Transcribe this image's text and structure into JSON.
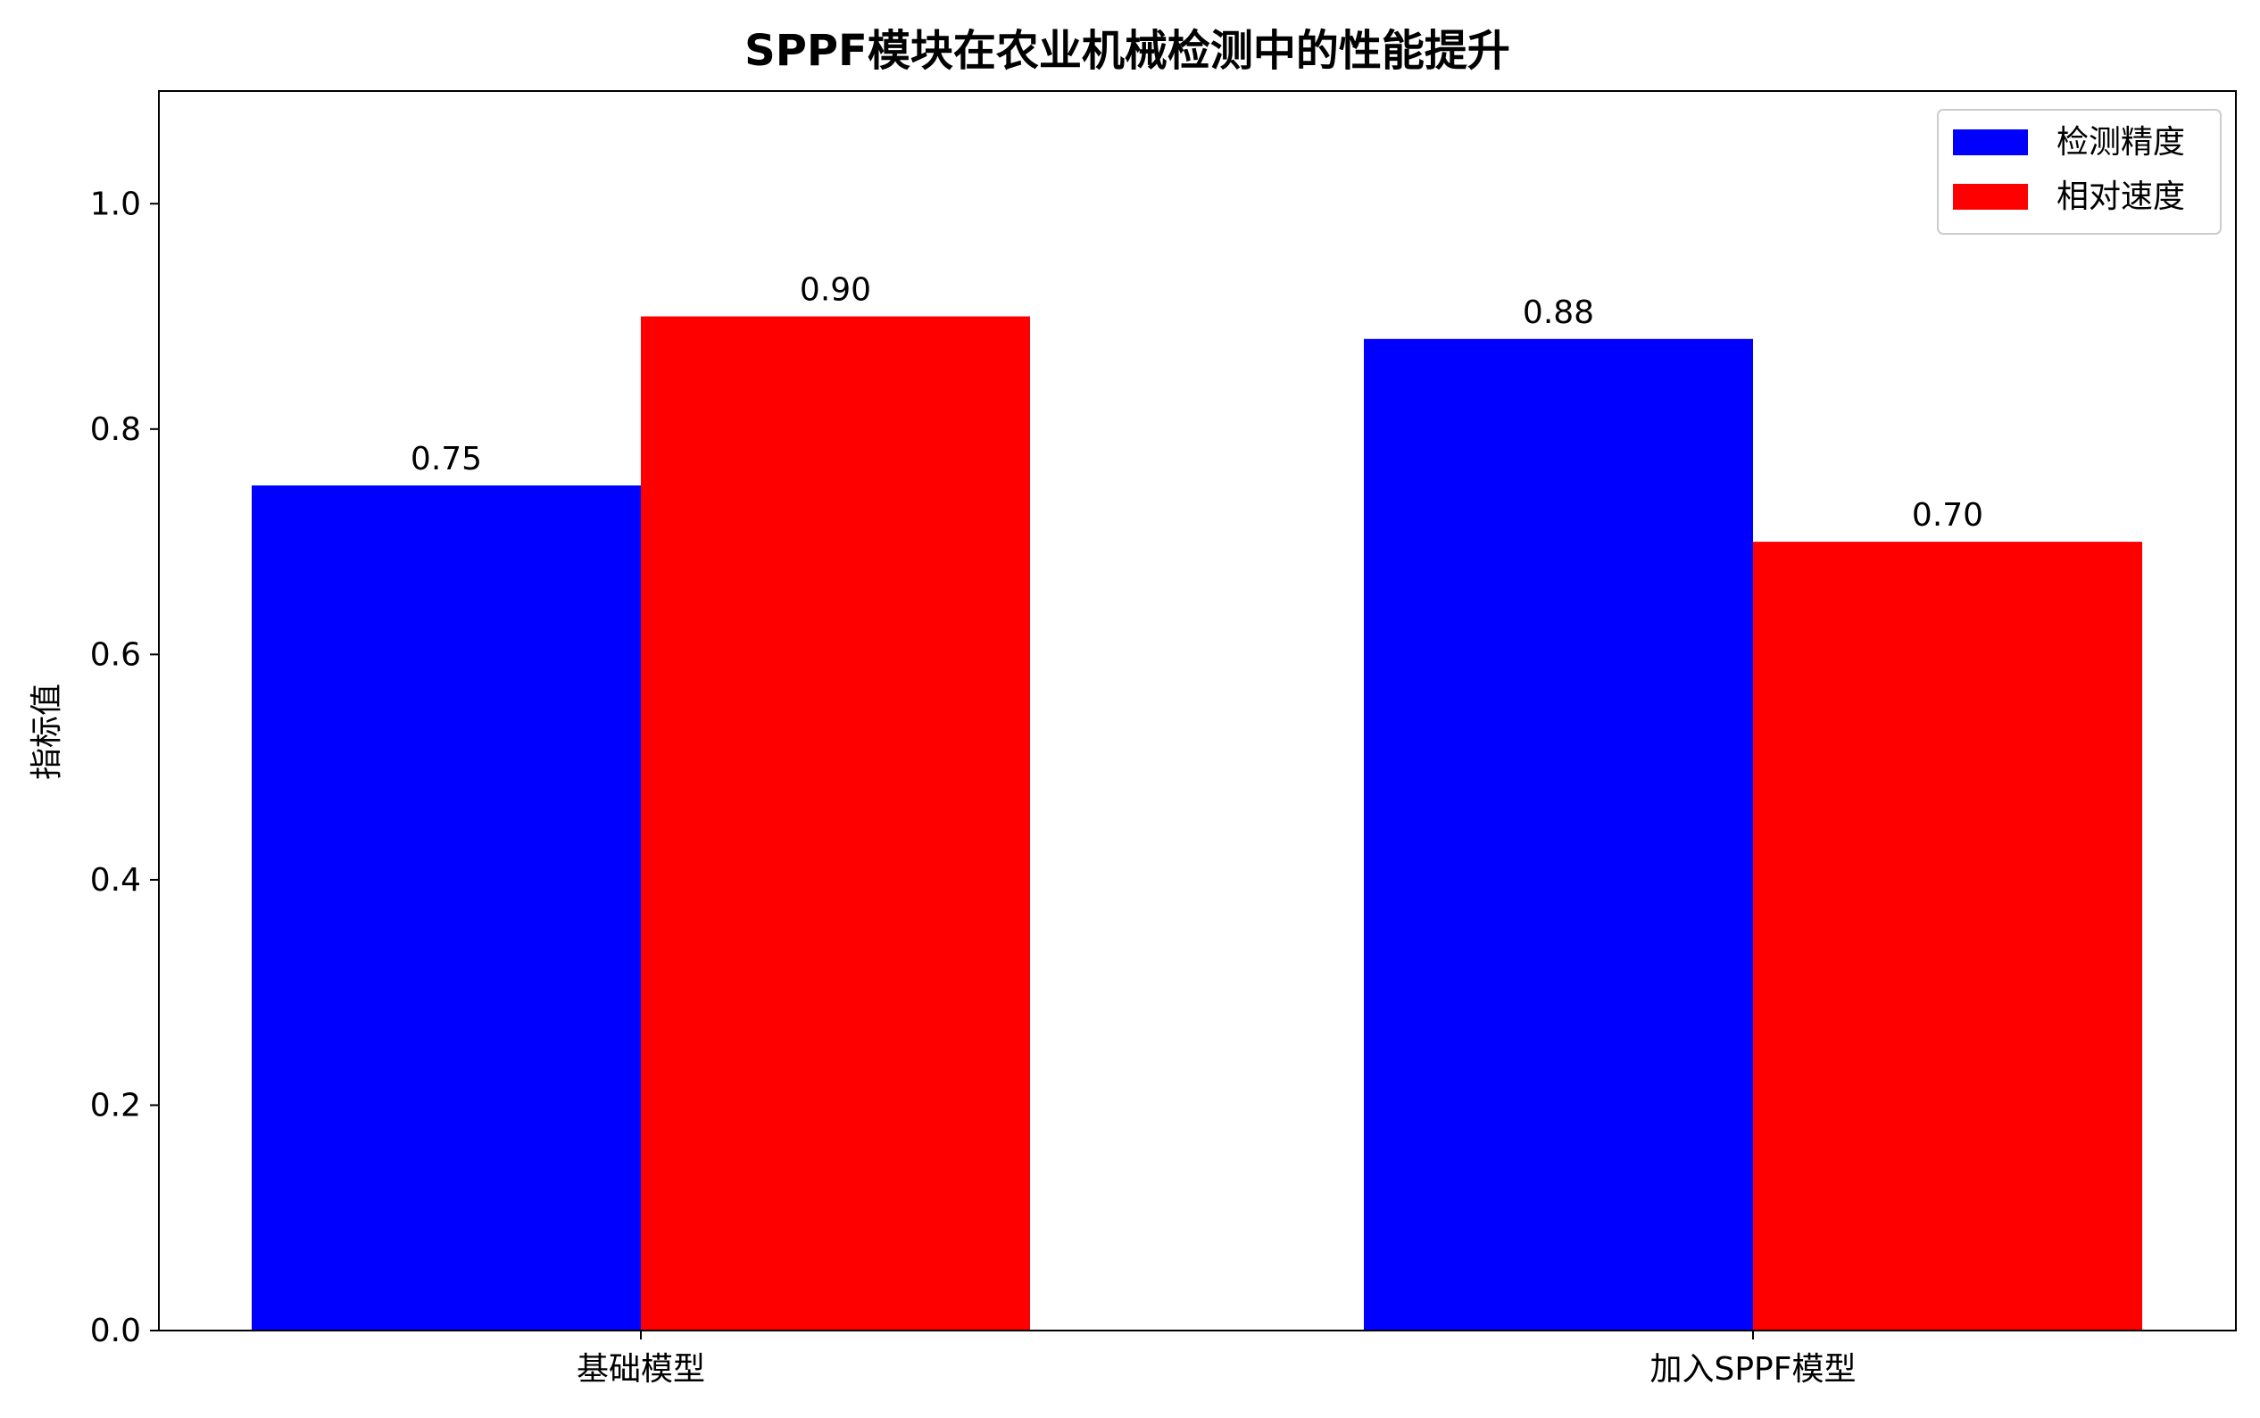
{
  "chart_data": {
    "type": "bar",
    "title": "SPPF模块在农业机械检测中的性能提升",
    "xlabel": "",
    "ylabel": "指标值",
    "categories": [
      "基础模型",
      "加入SPPF模型"
    ],
    "series": [
      {
        "name": "检测精度",
        "values": [
          0.75,
          0.88
        ],
        "color": "#0000ff"
      },
      {
        "name": "相对速度",
        "values": [
          0.9,
          0.7
        ],
        "color": "#ff0000"
      }
    ],
    "ylim": [
      0.0,
      1.1
    ],
    "yticks": [
      0.0,
      0.2,
      0.4,
      0.6,
      0.8,
      1.0
    ],
    "ytick_labels": [
      "0.0",
      "0.2",
      "0.4",
      "0.6",
      "0.8",
      "1.0"
    ],
    "data_labels": [
      [
        "0.75",
        "0.88"
      ],
      [
        "0.90",
        "0.70"
      ]
    ],
    "grid": false,
    "legend_position": "top-right"
  }
}
